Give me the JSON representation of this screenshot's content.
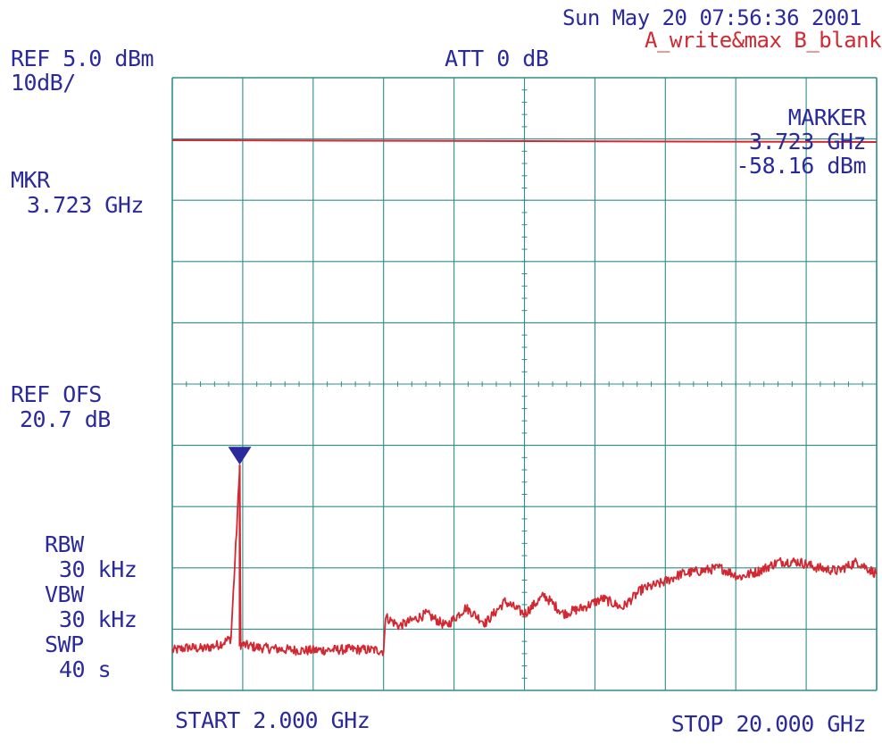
{
  "header": {
    "timestamp": "Sun May 20 07:56:36 2001",
    "ref_level": "REF 5.0 dBm",
    "scale": "10dB/",
    "attenuation": "ATT 0 dB",
    "trace_mode": "A_write&max B_blank"
  },
  "marker_readout": {
    "title": "MARKER",
    "frequency": "3.723 GHz",
    "amplitude": "-58.16 dBm"
  },
  "left_panel": {
    "mkr_label": "MKR",
    "mkr_value": "3.723 GHz",
    "ref_ofs_label": "REF OFS",
    "ref_ofs_value": "20.7 dB",
    "rbw_label": "RBW",
    "rbw_value": "30 kHz",
    "vbw_label": "VBW",
    "vbw_value": "30 kHz",
    "swp_label": "SWP",
    "swp_value": "40 s"
  },
  "footer": {
    "start": "START 2.000 GHz",
    "stop": "STOP 20.000 GHz"
  },
  "colors": {
    "grid": "#2b8f8a",
    "trace": "#d22832",
    "marker": "#2a2a9c",
    "text": "#2a2a9c"
  },
  "chart_data": {
    "type": "line",
    "xlim": [
      2.0,
      20.0
    ],
    "ylim": [
      -95.0,
      5.0
    ],
    "x_unit": "GHz",
    "y_unit": "dBm",
    "grid": true,
    "marker": {
      "x": 3.723,
      "y": -58.16
    },
    "reference_line": {
      "y": -5.2,
      "y_end": -5.5
    },
    "series": [
      {
        "x": [
          2.0,
          2.4,
          2.8,
          3.2,
          3.5,
          3.723,
          3.75,
          4.2,
          4.8,
          5.4,
          6.0,
          6.6,
          7.2,
          7.4,
          7.45,
          7.8,
          8.5,
          9.0,
          9.5,
          10.0,
          10.5,
          11.0,
          11.5,
          12.0,
          12.5,
          13.0,
          13.5,
          14.0,
          14.5,
          15.0,
          15.5,
          16.0,
          16.5,
          17.0,
          17.5,
          18.0,
          18.5,
          19.0,
          19.5,
          20.0
        ],
        "y": [
          -88.5,
          -88.0,
          -88.2,
          -87.5,
          -86.5,
          -59.0,
          -87.5,
          -88.0,
          -88.3,
          -88.5,
          -88.4,
          -88.3,
          -88.4,
          -88.6,
          -83.0,
          -84.5,
          -82.5,
          -84.5,
          -81.5,
          -84.0,
          -80.5,
          -82.5,
          -79.5,
          -82.5,
          -81.5,
          -80.0,
          -81.5,
          -78.5,
          -77.5,
          -76.0,
          -75.5,
          -75.0,
          -76.5,
          -75.5,
          -74.0,
          -74.0,
          -75.0,
          -75.5,
          -74.0,
          -76.0
        ]
      }
    ]
  }
}
